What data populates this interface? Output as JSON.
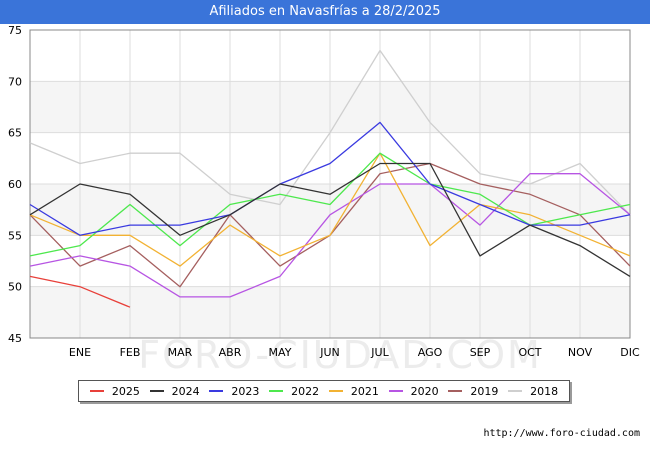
{
  "chart_data": {
    "type": "line",
    "title": "Afiliados en Navasfrías a 28/2/2025",
    "xlabel": "",
    "ylabel": "",
    "categories": [
      "",
      "ENE",
      "FEB",
      "MAR",
      "ABR",
      "MAY",
      "JUN",
      "JUL",
      "AGO",
      "SEP",
      "OCT",
      "NOV",
      "DIC"
    ],
    "ylim": [
      45,
      75
    ],
    "yticks": [
      45,
      50,
      55,
      60,
      65,
      70,
      75
    ],
    "grid": true,
    "legend_position": "bottom",
    "series": [
      {
        "name": "2025",
        "color": "#e8403a",
        "values": [
          51,
          50,
          48,
          null,
          null,
          null,
          null,
          null,
          null,
          null,
          null,
          null,
          null
        ]
      },
      {
        "name": "2024",
        "color": "#333333",
        "values": [
          57,
          60,
          59,
          55,
          57,
          60,
          59,
          62,
          62,
          53,
          56,
          54,
          51
        ]
      },
      {
        "name": "2023",
        "color": "#3a3ae0",
        "values": [
          58,
          55,
          56,
          56,
          57,
          60,
          62,
          66,
          60,
          58,
          56,
          56,
          57
        ]
      },
      {
        "name": "2022",
        "color": "#4de84d",
        "values": [
          53,
          54,
          58,
          54,
          58,
          59,
          58,
          63,
          60,
          59,
          56,
          57,
          58
        ]
      },
      {
        "name": "2021",
        "color": "#f2b233",
        "values": [
          57,
          55,
          55,
          52,
          56,
          53,
          55,
          63,
          54,
          58,
          57,
          55,
          53
        ]
      },
      {
        "name": "2020",
        "color": "#b755e3",
        "values": [
          52,
          53,
          52,
          49,
          49,
          51,
          57,
          60,
          60,
          56,
          61,
          61,
          57
        ]
      },
      {
        "name": "2019",
        "color": "#a55f5f",
        "values": [
          57,
          52,
          54,
          50,
          57,
          52,
          55,
          61,
          62,
          60,
          59,
          57,
          52
        ]
      },
      {
        "name": "2018",
        "color": "#cfcfcf",
        "values": [
          64,
          62,
          63,
          63,
          59,
          58,
          65,
          73,
          66,
          61,
          60,
          62,
          57
        ]
      }
    ]
  },
  "watermark": "FORO-CIUDAD.COM",
  "source": "http://www.foro-ciudad.com"
}
